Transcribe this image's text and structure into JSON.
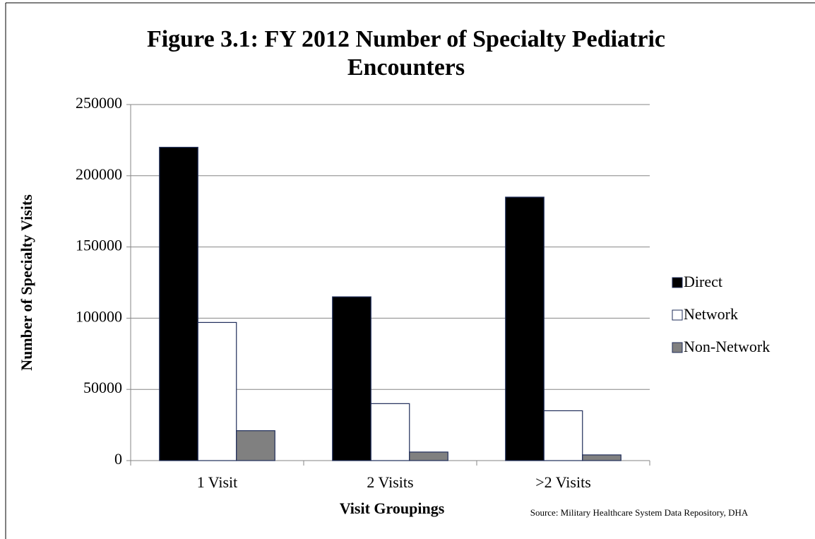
{
  "chart_data": {
    "type": "bar",
    "title": "Figure 3.1: FY 2012 Number of Specialty Pediatric Encounters",
    "x_label": "Visit Groupings",
    "y_label": "Number of Specialty Visits",
    "source": "Source: Military Healthcare System Data Repository, DHA",
    "categories": [
      "1 Visit",
      "2 Visits",
      ">2 Visits"
    ],
    "series": [
      {
        "name": "Direct",
        "color": "#000000",
        "values": [
          220000,
          115000,
          185000
        ]
      },
      {
        "name": "Network",
        "color": "#ffffff",
        "values": [
          97000,
          40000,
          35000
        ]
      },
      {
        "name": "Non-Network",
        "color": "#808080",
        "values": [
          21000,
          6000,
          4000
        ]
      }
    ],
    "ylim": [
      0,
      250000
    ],
    "yticks": [
      0,
      50000,
      100000,
      150000,
      200000,
      250000
    ],
    "grid": true,
    "legend": "right"
  }
}
